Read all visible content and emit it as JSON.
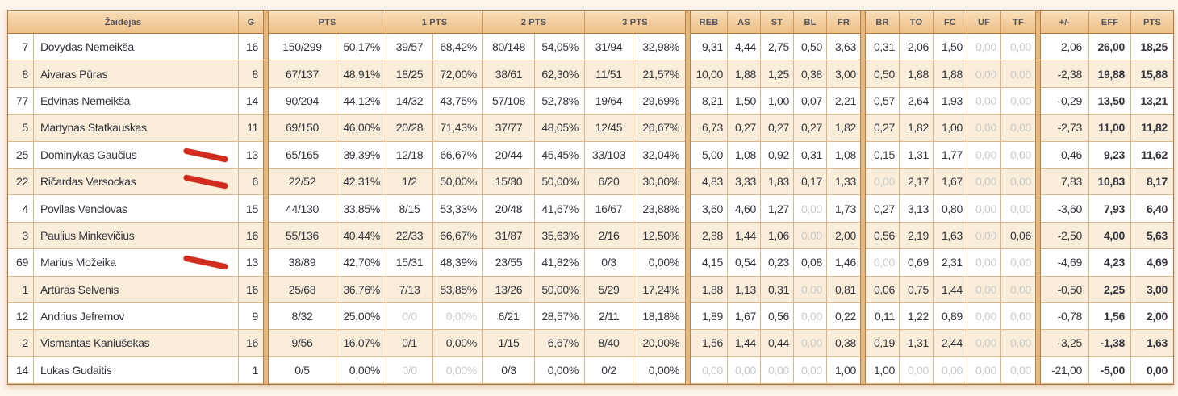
{
  "table": {
    "headers": {
      "player": "Žaidėjas",
      "games": "G",
      "shooting": [
        "PTS",
        "1 PTS",
        "2 PTS",
        "3 PTS"
      ],
      "defense": [
        "REB",
        "AS",
        "ST",
        "BL",
        "FR"
      ],
      "discipline": [
        "BR",
        "TO",
        "FC",
        "UF",
        "TF"
      ],
      "totals": [
        "+/-",
        "EFF",
        "PTS"
      ]
    },
    "rows": [
      {
        "num": "7",
        "name": "Dovydas Nemeikša",
        "g": "16",
        "pts_ma": "150/299",
        "pts_pct": "50,17%",
        "p1_ma": "39/57",
        "p1_pct": "68,42%",
        "p2_ma": "80/148",
        "p2_pct": "54,05%",
        "p3_ma": "31/94",
        "p3_pct": "32,98%",
        "reb": "9,31",
        "as": "4,44",
        "st": "2,75",
        "bl": "0,50",
        "fr": "3,63",
        "br": "0,31",
        "to": "2,06",
        "fc": "1,50",
        "uf": "0,00",
        "tf": "0,00",
        "pm": "2,06",
        "eff": "26,00",
        "pts": "18,25",
        "muted": [
          "uf",
          "tf"
        ],
        "mark": false
      },
      {
        "num": "8",
        "name": "Aivaras Pūras",
        "g": "8",
        "pts_ma": "67/137",
        "pts_pct": "48,91%",
        "p1_ma": "18/25",
        "p1_pct": "72,00%",
        "p2_ma": "38/61",
        "p2_pct": "62,30%",
        "p3_ma": "11/51",
        "p3_pct": "21,57%",
        "reb": "10,00",
        "as": "1,88",
        "st": "1,25",
        "bl": "0,38",
        "fr": "3,00",
        "br": "0,50",
        "to": "1,88",
        "fc": "1,88",
        "uf": "0,00",
        "tf": "0,00",
        "pm": "-2,38",
        "eff": "19,88",
        "pts": "15,88",
        "muted": [
          "uf",
          "tf"
        ],
        "mark": false
      },
      {
        "num": "77",
        "name": "Edvinas Nemeikša",
        "g": "14",
        "pts_ma": "90/204",
        "pts_pct": "44,12%",
        "p1_ma": "14/32",
        "p1_pct": "43,75%",
        "p2_ma": "57/108",
        "p2_pct": "52,78%",
        "p3_ma": "19/64",
        "p3_pct": "29,69%",
        "reb": "8,21",
        "as": "1,50",
        "st": "1,00",
        "bl": "0,07",
        "fr": "2,21",
        "br": "0,57",
        "to": "2,64",
        "fc": "1,93",
        "uf": "0,00",
        "tf": "0,00",
        "pm": "-0,29",
        "eff": "13,50",
        "pts": "13,21",
        "muted": [
          "uf",
          "tf"
        ],
        "mark": false
      },
      {
        "num": "5",
        "name": "Martynas Statkauskas",
        "g": "11",
        "pts_ma": "69/150",
        "pts_pct": "46,00%",
        "p1_ma": "20/28",
        "p1_pct": "71,43%",
        "p2_ma": "37/77",
        "p2_pct": "48,05%",
        "p3_ma": "12/45",
        "p3_pct": "26,67%",
        "reb": "6,73",
        "as": "0,27",
        "st": "0,27",
        "bl": "0,27",
        "fr": "1,82",
        "br": "0,27",
        "to": "1,82",
        "fc": "1,00",
        "uf": "0,00",
        "tf": "0,00",
        "pm": "-2,73",
        "eff": "11,00",
        "pts": "11,82",
        "muted": [
          "uf",
          "tf"
        ],
        "mark": false
      },
      {
        "num": "25",
        "name": "Dominykas Gaučius",
        "g": "13",
        "pts_ma": "65/165",
        "pts_pct": "39,39%",
        "p1_ma": "12/18",
        "p1_pct": "66,67%",
        "p2_ma": "20/44",
        "p2_pct": "45,45%",
        "p3_ma": "33/103",
        "p3_pct": "32,04%",
        "reb": "5,00",
        "as": "1,08",
        "st": "0,92",
        "bl": "0,31",
        "fr": "1,08",
        "br": "0,15",
        "to": "1,31",
        "fc": "1,77",
        "uf": "0,00",
        "tf": "0,00",
        "pm": "0,46",
        "eff": "9,23",
        "pts": "11,62",
        "muted": [
          "uf",
          "tf"
        ],
        "mark": true
      },
      {
        "num": "22",
        "name": "Ričardas Versockas",
        "g": "6",
        "pts_ma": "22/52",
        "pts_pct": "42,31%",
        "p1_ma": "1/2",
        "p1_pct": "50,00%",
        "p2_ma": "15/30",
        "p2_pct": "50,00%",
        "p3_ma": "6/20",
        "p3_pct": "30,00%",
        "reb": "4,83",
        "as": "3,33",
        "st": "1,83",
        "bl": "0,17",
        "fr": "1,33",
        "br": "0,00",
        "to": "2,17",
        "fc": "1,67",
        "uf": "0,00",
        "tf": "0,00",
        "pm": "7,83",
        "eff": "10,83",
        "pts": "8,17",
        "muted": [
          "br",
          "uf",
          "tf"
        ],
        "mark": true
      },
      {
        "num": "4",
        "name": "Povilas Venclovas",
        "g": "15",
        "pts_ma": "44/130",
        "pts_pct": "33,85%",
        "p1_ma": "8/15",
        "p1_pct": "53,33%",
        "p2_ma": "20/48",
        "p2_pct": "41,67%",
        "p3_ma": "16/67",
        "p3_pct": "23,88%",
        "reb": "3,60",
        "as": "4,60",
        "st": "1,27",
        "bl": "0,00",
        "fr": "1,73",
        "br": "0,27",
        "to": "3,13",
        "fc": "0,80",
        "uf": "0,00",
        "tf": "0,00",
        "pm": "-3,60",
        "eff": "7,93",
        "pts": "6,40",
        "muted": [
          "bl",
          "uf",
          "tf"
        ],
        "mark": false
      },
      {
        "num": "3",
        "name": "Paulius Minkevičius",
        "g": "16",
        "pts_ma": "55/136",
        "pts_pct": "40,44%",
        "p1_ma": "22/33",
        "p1_pct": "66,67%",
        "p2_ma": "31/87",
        "p2_pct": "35,63%",
        "p3_ma": "2/16",
        "p3_pct": "12,50%",
        "reb": "2,88",
        "as": "1,44",
        "st": "1,06",
        "bl": "0,00",
        "fr": "2,00",
        "br": "0,56",
        "to": "2,19",
        "fc": "1,63",
        "uf": "0,00",
        "tf": "0,06",
        "pm": "-2,50",
        "eff": "4,00",
        "pts": "5,63",
        "muted": [
          "bl",
          "uf"
        ],
        "mark": false
      },
      {
        "num": "69",
        "name": "Marius Možeika",
        "g": "13",
        "pts_ma": "38/89",
        "pts_pct": "42,70%",
        "p1_ma": "15/31",
        "p1_pct": "48,39%",
        "p2_ma": "23/55",
        "p2_pct": "41,82%",
        "p3_ma": "0/3",
        "p3_pct": "0,00%",
        "reb": "4,15",
        "as": "0,54",
        "st": "0,23",
        "bl": "0,08",
        "fr": "1,46",
        "br": "0,00",
        "to": "0,69",
        "fc": "2,31",
        "uf": "0,00",
        "tf": "0,00",
        "pm": "-4,69",
        "eff": "4,23",
        "pts": "4,69",
        "muted": [
          "br",
          "uf",
          "tf"
        ],
        "mark": true
      },
      {
        "num": "1",
        "name": "Artūras Selvenis",
        "g": "16",
        "pts_ma": "25/68",
        "pts_pct": "36,76%",
        "p1_ma": "7/13",
        "p1_pct": "53,85%",
        "p2_ma": "13/26",
        "p2_pct": "50,00%",
        "p3_ma": "5/29",
        "p3_pct": "17,24%",
        "reb": "1,88",
        "as": "1,13",
        "st": "0,31",
        "bl": "0,00",
        "fr": "0,81",
        "br": "0,06",
        "to": "0,75",
        "fc": "1,44",
        "uf": "0,00",
        "tf": "0,00",
        "pm": "-0,50",
        "eff": "2,25",
        "pts": "3,00",
        "muted": [
          "bl",
          "uf",
          "tf"
        ],
        "mark": false
      },
      {
        "num": "12",
        "name": "Andrius Jefremov",
        "g": "9",
        "pts_ma": "8/32",
        "pts_pct": "25,00%",
        "p1_ma": "0/0",
        "p1_pct": "0,00%",
        "p2_ma": "6/21",
        "p2_pct": "28,57%",
        "p3_ma": "2/11",
        "p3_pct": "18,18%",
        "reb": "1,89",
        "as": "1,67",
        "st": "0,56",
        "bl": "0,00",
        "fr": "0,22",
        "br": "0,11",
        "to": "1,22",
        "fc": "0,89",
        "uf": "0,00",
        "tf": "0,00",
        "pm": "-0,78",
        "eff": "1,56",
        "pts": "2,00",
        "muted": [
          "p1_ma",
          "p1_pct",
          "bl",
          "uf",
          "tf"
        ],
        "mark": false
      },
      {
        "num": "2",
        "name": "Vismantas Kaniušekas",
        "g": "16",
        "pts_ma": "9/56",
        "pts_pct": "16,07%",
        "p1_ma": "0/1",
        "p1_pct": "0,00%",
        "p2_ma": "1/15",
        "p2_pct": "6,67%",
        "p3_ma": "8/40",
        "p3_pct": "20,00%",
        "reb": "1,56",
        "as": "1,44",
        "st": "0,44",
        "bl": "0,00",
        "fr": "0,38",
        "br": "0,19",
        "to": "1,31",
        "fc": "2,44",
        "uf": "0,00",
        "tf": "0,00",
        "pm": "-3,25",
        "eff": "-1,38",
        "pts": "1,63",
        "muted": [
          "bl",
          "uf",
          "tf"
        ],
        "mark": false
      },
      {
        "num": "14",
        "name": "Lukas Gudaitis",
        "g": "1",
        "pts_ma": "0/5",
        "pts_pct": "0,00%",
        "p1_ma": "0/0",
        "p1_pct": "0,00%",
        "p2_ma": "0/3",
        "p2_pct": "0,00%",
        "p3_ma": "0/2",
        "p3_pct": "0,00%",
        "reb": "0,00",
        "as": "0,00",
        "st": "0,00",
        "bl": "0,00",
        "fr": "1,00",
        "br": "1,00",
        "to": "0,00",
        "fc": "0,00",
        "uf": "0,00",
        "tf": "0,00",
        "pm": "-21,00",
        "eff": "-5,00",
        "pts": "0,00",
        "muted": [
          "p1_ma",
          "p1_pct",
          "reb",
          "as",
          "st",
          "bl",
          "to",
          "fc",
          "uf",
          "tf"
        ],
        "mark": false
      }
    ]
  },
  "annotations": {
    "red_pen_mark_rows": [
      "Dominykas Gaučius",
      "Ričardas Versockas",
      "Marius Možeika"
    ],
    "red_pen_color": "#d22c1e"
  },
  "colors": {
    "header_top": "#f9ddb7",
    "header_bottom": "#edbf88",
    "row_alt": "#faeeda",
    "row_white": "#ffffff",
    "grid_border": "#d8b98c",
    "group_border": "#b5793d",
    "group_gap_fill": "#e3b87e",
    "text": "#33343d",
    "muted_text": "#c8cccc",
    "page_bg": "#fdf4ea"
  }
}
